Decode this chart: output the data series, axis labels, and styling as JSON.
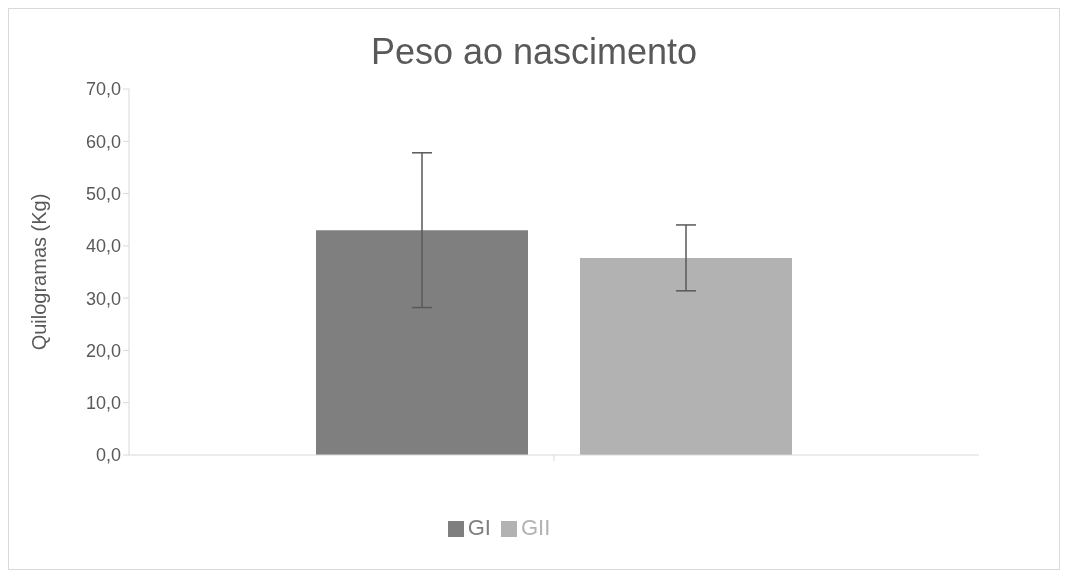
{
  "chart_data": {
    "type": "bar",
    "title": "Peso ao nascimento",
    "ylabel": "Quilogramas (Kg)",
    "categories": [
      null
    ],
    "series": [
      {
        "name": "GI",
        "color": "#7f7f7f",
        "values": [
          43.0
        ],
        "errors": [
          14.8
        ]
      },
      {
        "name": "GII",
        "color": "#b2b2b2",
        "values": [
          37.7
        ],
        "errors": [
          6.3
        ]
      }
    ],
    "ylim": [
      0,
      70
    ],
    "yticks": [
      {
        "value": 0,
        "label": "0,0"
      },
      {
        "value": 10,
        "label": "10,0"
      },
      {
        "value": 20,
        "label": "20,0"
      },
      {
        "value": 30,
        "label": "30,0"
      },
      {
        "value": 40,
        "label": "40,0"
      },
      {
        "value": 50,
        "label": "50,0"
      },
      {
        "value": 60,
        "label": "60,0"
      },
      {
        "value": 70,
        "label": "70,0"
      }
    ],
    "grid": false,
    "legend": "bottom"
  }
}
